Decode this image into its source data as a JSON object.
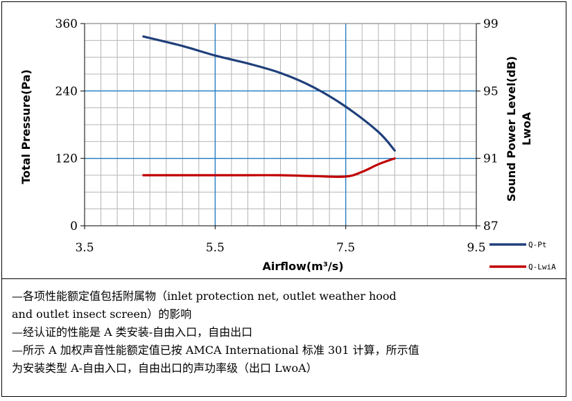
{
  "chart_data": {
    "type": "line",
    "xlabel": "Airflow(m³/s)",
    "ylabel_left": "Total Pressure(Pa)",
    "ylabel_right_line1": "Sound Power Level(dB)",
    "ylabel_right_line2": "LwoA",
    "xlim": [
      3.5,
      9.5
    ],
    "ylim_left": [
      0,
      360
    ],
    "ylim_right": [
      87,
      99
    ],
    "x_ticks": [
      "3.5",
      "5.5",
      "7.5",
      "9.5"
    ],
    "y_left_ticks": [
      "0",
      "120",
      "240",
      "360"
    ],
    "y_right_ticks": [
      "87",
      "91",
      "95",
      "99"
    ],
    "grid": true,
    "legend_position": "right",
    "series": [
      {
        "name": "Q-Pt",
        "axis": "left",
        "color": "#1f3f7a",
        "x": [
          4.4,
          5.0,
          5.5,
          6.0,
          6.5,
          7.0,
          7.5,
          8.0,
          8.25
        ],
        "y": [
          337,
          320,
          303,
          289,
          272,
          247,
          212,
          167,
          134
        ]
      },
      {
        "name": "Q-LwiA",
        "axis": "right",
        "color": "#c00000",
        "x": [
          4.4,
          5.5,
          6.0,
          6.5,
          7.0,
          7.5,
          7.75,
          8.0,
          8.25
        ],
        "y": [
          90.0,
          90.0,
          90.0,
          90.0,
          89.95,
          89.92,
          90.2,
          90.65,
          91.0
        ]
      }
    ]
  },
  "notes": [
    "—各项性能额定值包括附属物（inlet protection net, outlet weather hood",
    "and outlet insect screen）的影响",
    "—经认证的性能是 A 类安装-自由入口，自由出口",
    "—所示 A 加权声音性能额定值已按 AMCA International 标准 301 计算，所示值",
    "为安装类型 A-自由入口，自由出口的声功率级（出口 LwoA）"
  ]
}
